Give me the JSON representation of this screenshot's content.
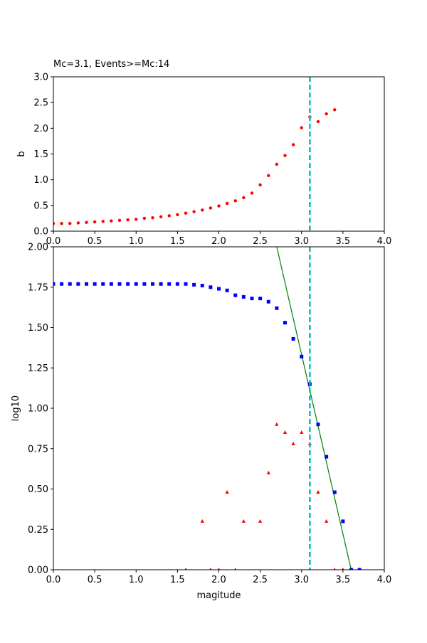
{
  "chart_data": [
    {
      "type": "scatter",
      "title": "Mc=3.1, Events>=Mc:14",
      "ylabel": "b",
      "xlim": [
        0,
        4
      ],
      "ylim": [
        0,
        3
      ],
      "xticks": [
        {
          "value": 0,
          "label": "0.0"
        },
        {
          "value": 0.5,
          "label": "0.5"
        },
        {
          "value": 1,
          "label": "1.0"
        },
        {
          "value": 1.5,
          "label": "1.5"
        },
        {
          "value": 2,
          "label": "2.0"
        },
        {
          "value": 2.5,
          "label": "2.5"
        },
        {
          "value": 3,
          "label": "3.0"
        },
        {
          "value": 3.5,
          "label": "3.5"
        },
        {
          "value": 4,
          "label": "4.0"
        }
      ],
      "yticks": [
        {
          "value": 0,
          "label": "0.0"
        },
        {
          "value": 0.5,
          "label": "0.5"
        },
        {
          "value": 1,
          "label": "1.0"
        },
        {
          "value": 1.5,
          "label": "1.5"
        },
        {
          "value": 2,
          "label": "2.0"
        },
        {
          "value": 2.5,
          "label": "2.5"
        },
        {
          "value": 3,
          "label": "3.0"
        }
      ],
      "series": [
        {
          "color": "#ff0000",
          "marker": "circle",
          "x": [
            0,
            0.1,
            0.2,
            0.3,
            0.4,
            0.5,
            0.6,
            0.7,
            0.8,
            0.9,
            1.0,
            1.1,
            1.2,
            1.3,
            1.4,
            1.5,
            1.6,
            1.7,
            1.8,
            1.9,
            2.0,
            2.1,
            2.2,
            2.3,
            2.4,
            2.5,
            2.6,
            2.7,
            2.8,
            2.9,
            3.0,
            3.1,
            3.2,
            3.3,
            3.4
          ],
          "values": [
            0.15,
            0.15,
            0.15,
            0.16,
            0.17,
            0.18,
            0.19,
            0.2,
            0.21,
            0.22,
            0.23,
            0.25,
            0.26,
            0.28,
            0.3,
            0.32,
            0.35,
            0.38,
            0.41,
            0.45,
            0.49,
            0.54,
            0.59,
            0.65,
            0.74,
            0.9,
            1.08,
            1.3,
            1.47,
            1.68,
            2.01,
            2.22,
            2.13,
            2.28,
            2.36
          ]
        }
      ],
      "vlines": [
        {
          "x": 3.1,
          "color": "#00bfbf"
        }
      ]
    },
    {
      "type": "scatter",
      "ylabel": "log10",
      "xlabel": "magitude",
      "xlim": [
        0,
        4
      ],
      "ylim": [
        0,
        2
      ],
      "xticks": [
        {
          "value": 0,
          "label": "0.0"
        },
        {
          "value": 0.5,
          "label": "0.5"
        },
        {
          "value": 1,
          "label": "1.0"
        },
        {
          "value": 1.5,
          "label": "1.5"
        },
        {
          "value": 2,
          "label": "2.0"
        },
        {
          "value": 2.5,
          "label": "2.5"
        },
        {
          "value": 3,
          "label": "3.0"
        },
        {
          "value": 3.5,
          "label": "3.5"
        },
        {
          "value": 4,
          "label": "4.0"
        }
      ],
      "yticks": [
        {
          "value": 0,
          "label": "0.00"
        },
        {
          "value": 0.25,
          "label": "0.25"
        },
        {
          "value": 0.5,
          "label": "0.50"
        },
        {
          "value": 0.75,
          "label": "0.75"
        },
        {
          "value": 1,
          "label": "1.00"
        },
        {
          "value": 1.25,
          "label": "1.25"
        },
        {
          "value": 1.5,
          "label": "1.50"
        },
        {
          "value": 1.75,
          "label": "1.75"
        },
        {
          "value": 2,
          "label": "2.00"
        }
      ],
      "series": [
        {
          "color": "#008000",
          "marker": "line",
          "x": [
            2.7,
            3.6
          ],
          "values": [
            2.0,
            0
          ]
        },
        {
          "color": "#0000ff",
          "marker": "square",
          "x": [
            0,
            0.1,
            0.2,
            0.3,
            0.4,
            0.5,
            0.6,
            0.7,
            0.8,
            0.9,
            1.0,
            1.1,
            1.2,
            1.3,
            1.4,
            1.5,
            1.6,
            1.7,
            1.8,
            1.9,
            2.0,
            2.1,
            2.2,
            2.3,
            2.4,
            2.5,
            2.6,
            2.7,
            2.8,
            2.9,
            3.0,
            3.1,
            3.2,
            3.3,
            3.4,
            3.5,
            3.6,
            3.7
          ],
          "values": [
            1.77,
            1.77,
            1.77,
            1.77,
            1.77,
            1.77,
            1.77,
            1.77,
            1.77,
            1.77,
            1.77,
            1.77,
            1.77,
            1.77,
            1.77,
            1.77,
            1.77,
            1.765,
            1.76,
            1.75,
            1.74,
            1.73,
            1.7,
            1.69,
            1.68,
            1.68,
            1.66,
            1.62,
            1.53,
            1.43,
            1.32,
            1.15,
            0.9,
            0.7,
            0.48,
            0.3,
            0,
            0
          ]
        },
        {
          "color": "#ff0000",
          "marker": "triangle",
          "x": [
            1.6,
            1.8,
            1.9,
            2.0,
            2.1,
            2.2,
            2.3,
            2.5,
            2.6,
            2.7,
            2.8,
            2.9,
            3.0,
            3.1,
            3.2,
            3.3,
            3.4,
            3.5
          ],
          "values": [
            0,
            0.3,
            0,
            0,
            0.48,
            0,
            0.3,
            0.3,
            0.6,
            0.9,
            0.85,
            0.78,
            0.85,
            0.78,
            0.48,
            0.3,
            0,
            0
          ]
        }
      ],
      "vlines": [
        {
          "x": 3.1,
          "color": "#00bfbf"
        }
      ]
    }
  ]
}
